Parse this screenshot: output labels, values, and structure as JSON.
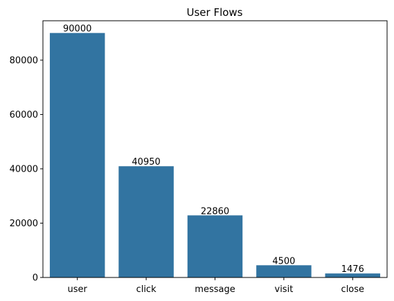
{
  "chart_data": {
    "type": "bar",
    "title": "User Flows",
    "xlabel": "",
    "ylabel": "",
    "categories": [
      "user",
      "click",
      "message",
      "visit",
      "close"
    ],
    "values": [
      90000,
      40950,
      22860,
      4500,
      1476
    ],
    "data_labels": [
      "90000",
      "40950",
      "22860",
      "4500",
      "1476"
    ],
    "ylim": [
      0,
      94500
    ],
    "yticks": [
      0,
      20000,
      40000,
      60000,
      80000
    ],
    "ytick_labels": [
      "0",
      "20000",
      "40000",
      "60000",
      "80000"
    ],
    "grid": false,
    "legend": "none",
    "bar_color": "#3274a1"
  }
}
